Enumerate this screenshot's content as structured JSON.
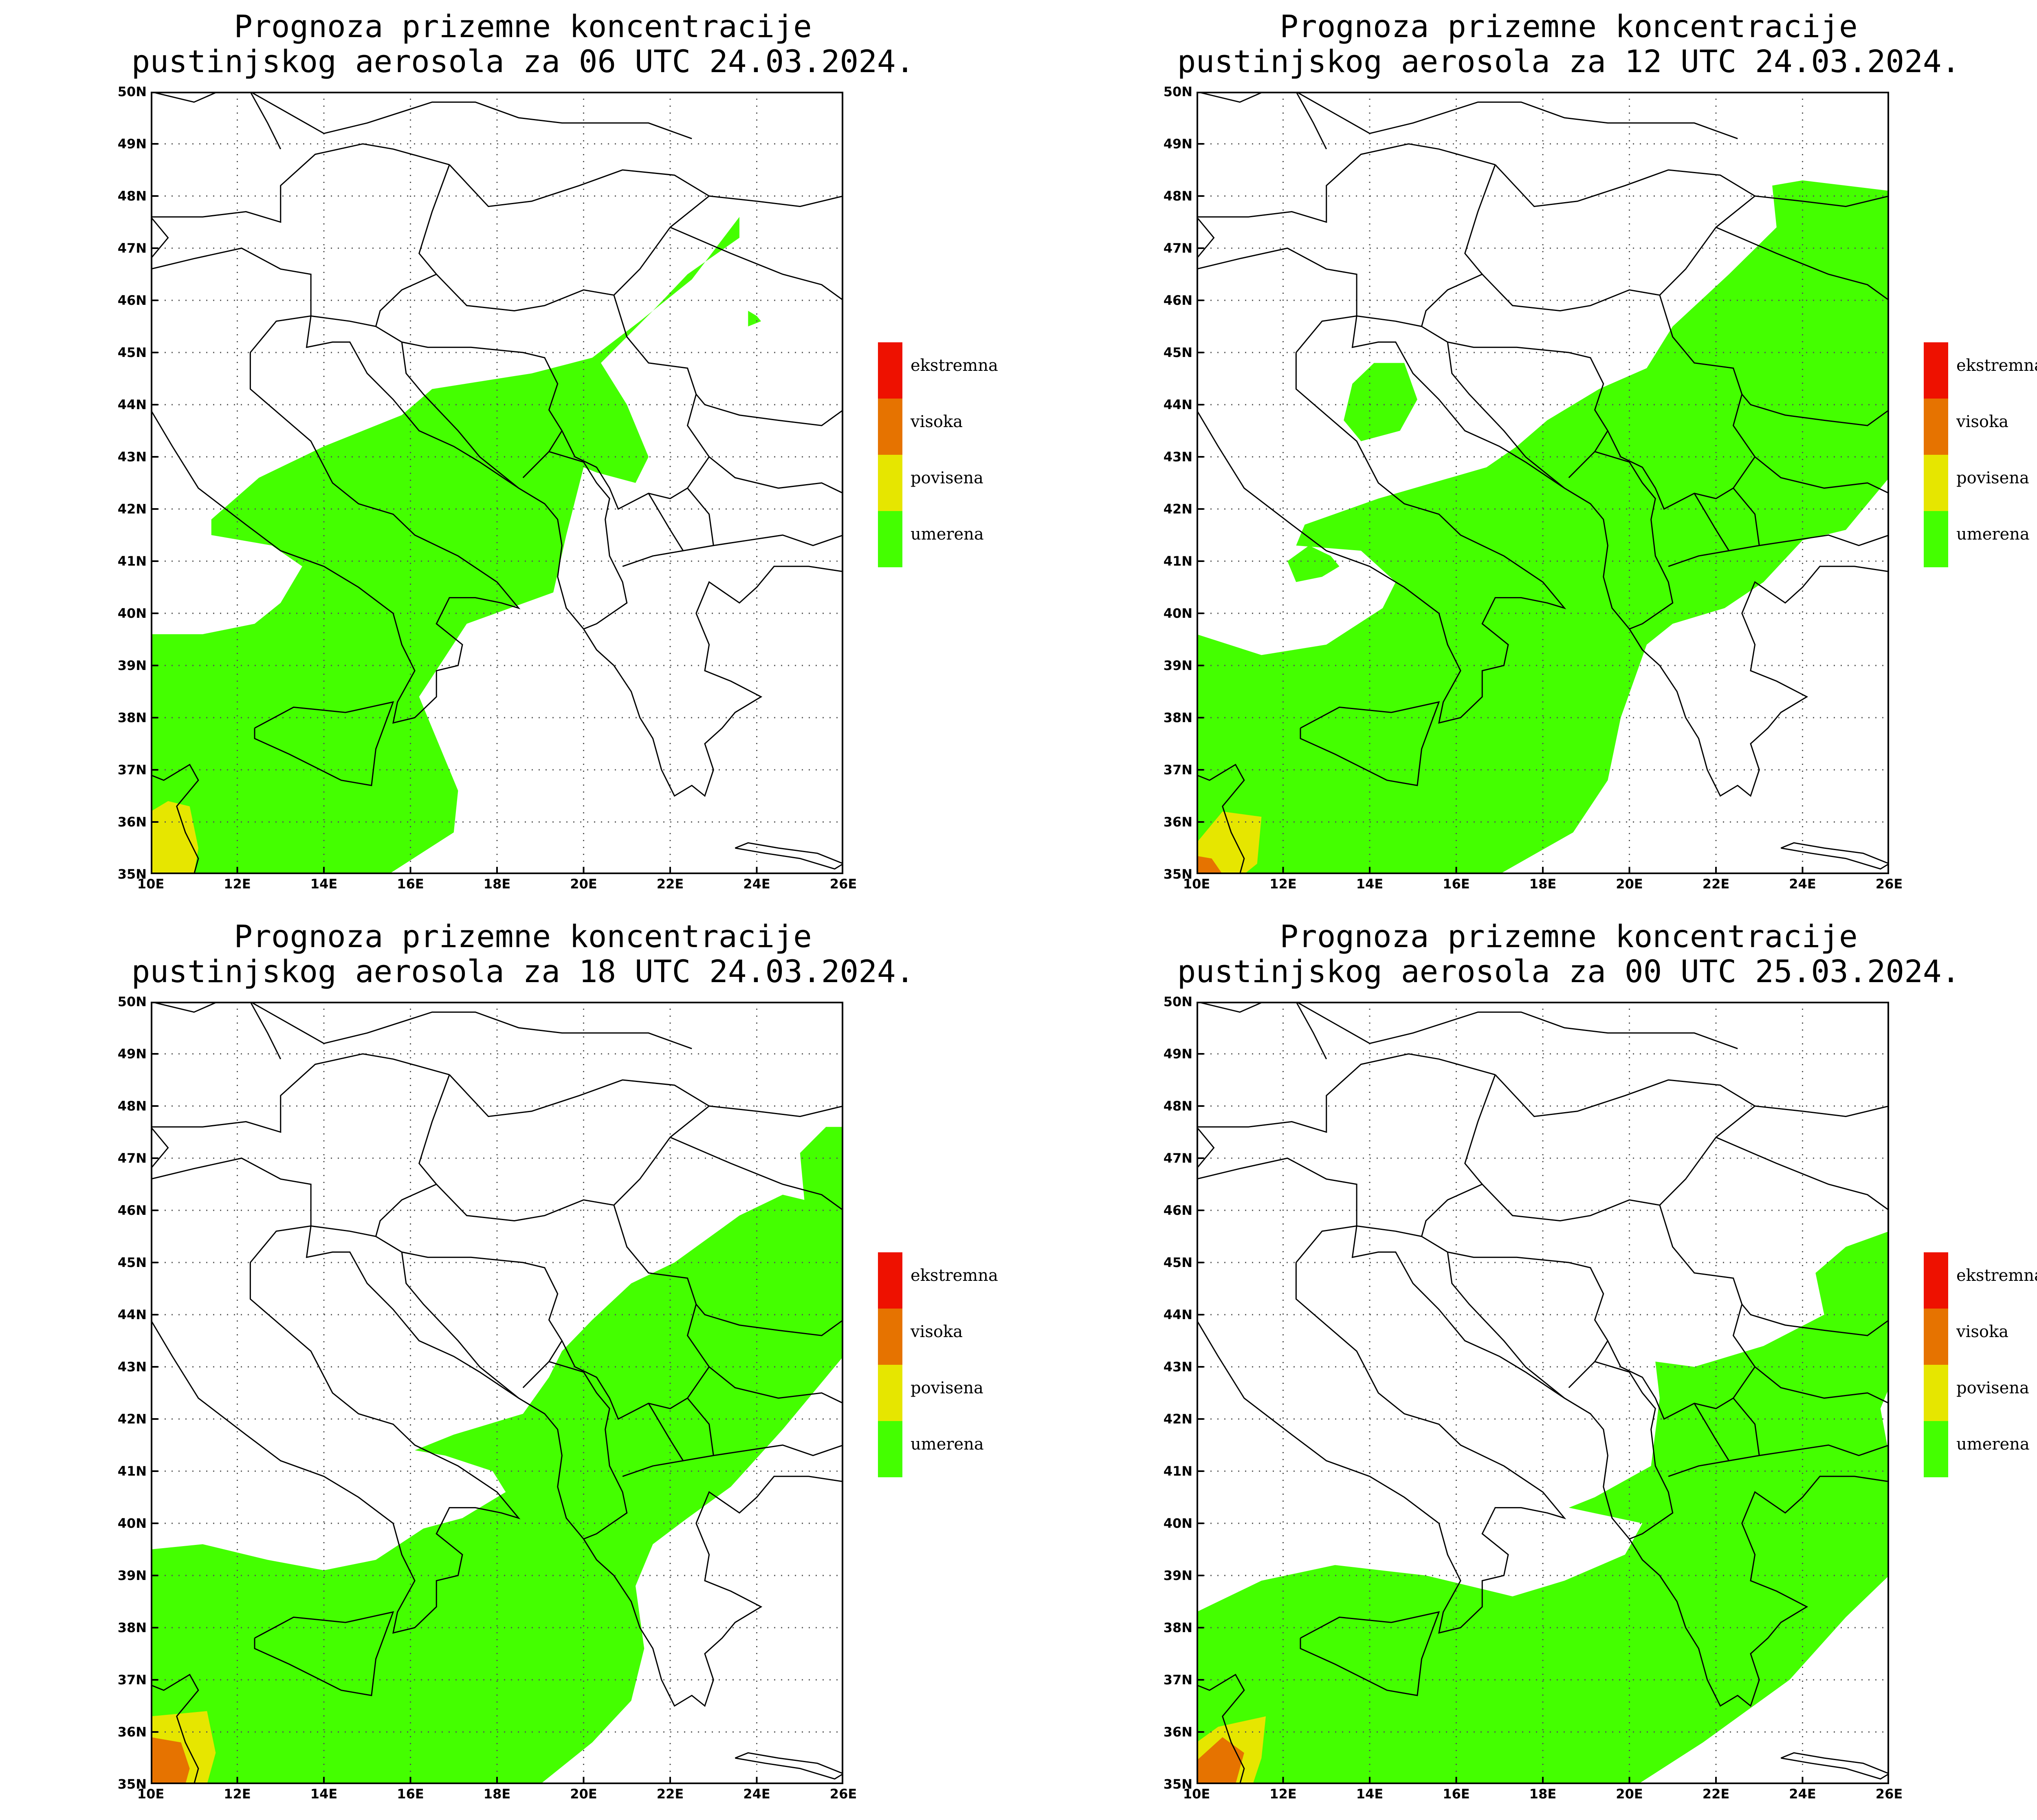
{
  "colors": {
    "umerena": "#44ff00",
    "povisena": "#e6e600",
    "visoka": "#e67300",
    "ekstremna": "#ee1100",
    "border": "#000000",
    "grid": "#555555"
  },
  "axes": {
    "lat_labels": [
      "50N",
      "49N",
      "48N",
      "47N",
      "46N",
      "45N",
      "44N",
      "43N",
      "42N",
      "41N",
      "40N",
      "39N",
      "38N",
      "37N",
      "36N",
      "35N"
    ],
    "lon_labels": [
      "10E",
      "12E",
      "14E",
      "16E",
      "18E",
      "20E",
      "22E",
      "24E",
      "26E"
    ],
    "lat_range": [
      35,
      50
    ],
    "lon_range": [
      10,
      26
    ]
  },
  "legend": {
    "items": [
      {
        "label": "ekstremna",
        "color": "#ee1100"
      },
      {
        "label": "visoka",
        "color": "#e67300"
      },
      {
        "label": "povisena",
        "color": "#e6e600"
      },
      {
        "label": "umerena",
        "color": "#44ff00"
      }
    ]
  },
  "panels": [
    {
      "title_line1": "Prognoza prizemne koncentracije",
      "title_line2": "pustinjskog aerosola za 06 UTC 24.03.2024.",
      "regions": [
        {
          "level": "umerena",
          "coords": [
            [
              10,
              39.6
            ],
            [
              11.2,
              39.6
            ],
            [
              12.4,
              39.8
            ],
            [
              13,
              40.2
            ],
            [
              13.5,
              40.9
            ],
            [
              12.8,
              41.3
            ],
            [
              11.4,
              41.5
            ],
            [
              11.4,
              41.8
            ],
            [
              12.5,
              42.6
            ],
            [
              14,
              43.2
            ],
            [
              15.8,
              43.8
            ],
            [
              16.5,
              44.3
            ],
            [
              18.8,
              44.6
            ],
            [
              20.2,
              44.9
            ],
            [
              21.3,
              45.6
            ],
            [
              22.5,
              46.4
            ],
            [
              23.6,
              47.6
            ],
            [
              23.6,
              47.2
            ],
            [
              22.4,
              46.5
            ],
            [
              21.6,
              45.8
            ],
            [
              20.4,
              44.8
            ],
            [
              21,
              44
            ],
            [
              21.5,
              43
            ],
            [
              21.2,
              42.5
            ],
            [
              20.3,
              42.7
            ],
            [
              20,
              42.8
            ],
            [
              19.6,
              41.5
            ],
            [
              19.3,
              40.4
            ],
            [
              17.3,
              39.8
            ],
            [
              16.2,
              38.4
            ],
            [
              16.8,
              37.2
            ],
            [
              17.1,
              36.6
            ],
            [
              17,
              35.8
            ],
            [
              15.5,
              35
            ],
            [
              10,
              35
            ]
          ]
        },
        {
          "level": "umerena",
          "coords": [
            [
              23.8,
              45.8
            ],
            [
              24,
              45.7
            ],
            [
              24.1,
              45.6
            ],
            [
              23.8,
              45.5
            ]
          ]
        },
        {
          "level": "povisena",
          "coords": [
            [
              10,
              35
            ],
            [
              10,
              36.2
            ],
            [
              10.4,
              36.4
            ],
            [
              10.9,
              36.3
            ],
            [
              11.1,
              35.5
            ],
            [
              11,
              35
            ]
          ]
        }
      ]
    },
    {
      "title_line1": "Prognoza prizemne koncentracije",
      "title_line2": "pustinjskog aerosola za 12 UTC 24.03.2024.",
      "regions": [
        {
          "level": "umerena",
          "coords": [
            [
              10,
              39.6
            ],
            [
              11.5,
              39.2
            ],
            [
              13,
              39.4
            ],
            [
              14.3,
              40.1
            ],
            [
              14.6,
              40.6
            ],
            [
              13.8,
              41.2
            ],
            [
              12.3,
              41.3
            ],
            [
              12.5,
              41.7
            ],
            [
              14.2,
              42.2
            ],
            [
              16.7,
              42.8
            ],
            [
              17.4,
              43.2
            ],
            [
              18.1,
              43.7
            ],
            [
              19.3,
              44.3
            ],
            [
              20.4,
              44.7
            ],
            [
              21,
              45.5
            ],
            [
              22.3,
              46.5
            ],
            [
              23.4,
              47.4
            ],
            [
              23.3,
              48.2
            ],
            [
              24,
              48.3
            ],
            [
              26,
              48.1
            ],
            [
              26,
              42.6
            ],
            [
              25,
              41.6
            ],
            [
              24,
              41.4
            ],
            [
              23.1,
              40.6
            ],
            [
              22.2,
              40.1
            ],
            [
              21,
              39.8
            ],
            [
              20.4,
              39.4
            ],
            [
              19.8,
              38
            ],
            [
              19.5,
              36.8
            ],
            [
              18.7,
              35.8
            ],
            [
              17,
              35
            ],
            [
              10,
              35
            ]
          ]
        },
        {
          "level": "umerena",
          "coords": [
            [
              14.1,
              44.8
            ],
            [
              14.8,
              44.8
            ],
            [
              15.1,
              44.1
            ],
            [
              14.7,
              43.5
            ],
            [
              13.8,
              43.3
            ],
            [
              13.4,
              43.7
            ],
            [
              13.6,
              44.4
            ]
          ]
        },
        {
          "level": "umerena",
          "coords": [
            [
              12.6,
              41.3
            ],
            [
              13.1,
              41.1
            ],
            [
              13.3,
              40.9
            ],
            [
              12.9,
              40.7
            ],
            [
              12.3,
              40.6
            ],
            [
              12.1,
              41
            ]
          ]
        },
        {
          "level": "povisena",
          "coords": [
            [
              10,
              35
            ],
            [
              10,
              35.6
            ],
            [
              10.6,
              36.2
            ],
            [
              11.5,
              36.1
            ],
            [
              11.4,
              35.2
            ],
            [
              11.1,
              35
            ]
          ]
        },
        {
          "level": "visoka",
          "coords": [
            [
              10,
              35
            ],
            [
              10,
              35.35
            ],
            [
              10.35,
              35.3
            ],
            [
              10.6,
              35
            ]
          ]
        }
      ]
    },
    {
      "title_line1": "Prognoza prizemne koncentracije",
      "title_line2": "pustinjskog aerosola za 18 UTC 24.03.2024.",
      "regions": [
        {
          "level": "umerena",
          "coords": [
            [
              10,
              39.5
            ],
            [
              11.2,
              39.6
            ],
            [
              12.7,
              39.3
            ],
            [
              14,
              39.1
            ],
            [
              15.2,
              39.3
            ],
            [
              16.3,
              39.9
            ],
            [
              17.2,
              40.1
            ],
            [
              18.2,
              40.6
            ],
            [
              17.9,
              41
            ],
            [
              16.8,
              41.3
            ],
            [
              16.1,
              41.4
            ],
            [
              17,
              41.7
            ],
            [
              18.6,
              42.1
            ],
            [
              19.2,
              42.8
            ],
            [
              19.5,
              43.3
            ],
            [
              20.2,
              43.9
            ],
            [
              21.1,
              44.6
            ],
            [
              22.1,
              45
            ],
            [
              23.6,
              45.9
            ],
            [
              24.6,
              46.3
            ],
            [
              25.1,
              46.2
            ],
            [
              25,
              47.1
            ],
            [
              25.6,
              47.6
            ],
            [
              26,
              47.6
            ],
            [
              26,
              43.2
            ],
            [
              24.6,
              41.8
            ],
            [
              23.4,
              40.7
            ],
            [
              22.4,
              40.1
            ],
            [
              21.6,
              39.6
            ],
            [
              21.2,
              38.8
            ],
            [
              21.4,
              37.6
            ],
            [
              21.1,
              36.6
            ],
            [
              20.2,
              35.8
            ],
            [
              19,
              35
            ],
            [
              10,
              35
            ]
          ]
        },
        {
          "level": "povisena",
          "coords": [
            [
              10,
              35
            ],
            [
              10,
              36.3
            ],
            [
              11.3,
              36.4
            ],
            [
              11.5,
              35.6
            ],
            [
              11.3,
              35
            ]
          ]
        },
        {
          "level": "visoka",
          "coords": [
            [
              10,
              35
            ],
            [
              10,
              35.9
            ],
            [
              10.7,
              35.8
            ],
            [
              10.9,
              35.3
            ],
            [
              10.8,
              35
            ]
          ]
        }
      ]
    },
    {
      "title_line1": "Prognoza prizemne koncentracije",
      "title_line2": "pustinjskog aerosola za 00 UTC 25.03.2024.",
      "regions": [
        {
          "level": "umerena",
          "coords": [
            [
              10,
              38.3
            ],
            [
              11.5,
              38.9
            ],
            [
              13.2,
              39.2
            ],
            [
              15.3,
              39
            ],
            [
              17.3,
              38.6
            ],
            [
              18.5,
              38.9
            ],
            [
              19.9,
              39.4
            ],
            [
              20.3,
              40
            ],
            [
              18.6,
              40.3
            ],
            [
              19.2,
              40.5
            ],
            [
              20.5,
              41.1
            ],
            [
              20.7,
              42.4
            ],
            [
              20.6,
              43.1
            ],
            [
              21.5,
              43
            ],
            [
              23.1,
              43.4
            ],
            [
              24.5,
              44
            ],
            [
              24.3,
              44.8
            ],
            [
              25,
              45.3
            ],
            [
              26,
              45.6
            ],
            [
              26,
              42.6
            ],
            [
              25.8,
              42.2
            ],
            [
              26,
              41.3
            ],
            [
              26,
              39
            ],
            [
              25,
              38.2
            ],
            [
              23.7,
              37
            ],
            [
              22.7,
              36.4
            ],
            [
              21.7,
              35.8
            ],
            [
              20.2,
              35
            ],
            [
              10,
              35
            ]
          ]
        },
        {
          "level": "povisena",
          "coords": [
            [
              10,
              35
            ],
            [
              10,
              35.8
            ],
            [
              10.5,
              36.1
            ],
            [
              11.6,
              36.3
            ],
            [
              11.5,
              35.5
            ],
            [
              11.3,
              35
            ]
          ]
        },
        {
          "level": "visoka",
          "coords": [
            [
              10,
              35
            ],
            [
              10,
              35.45
            ],
            [
              10.6,
              35.9
            ],
            [
              11.1,
              35.6
            ],
            [
              10.9,
              35
            ]
          ]
        }
      ]
    }
  ]
}
